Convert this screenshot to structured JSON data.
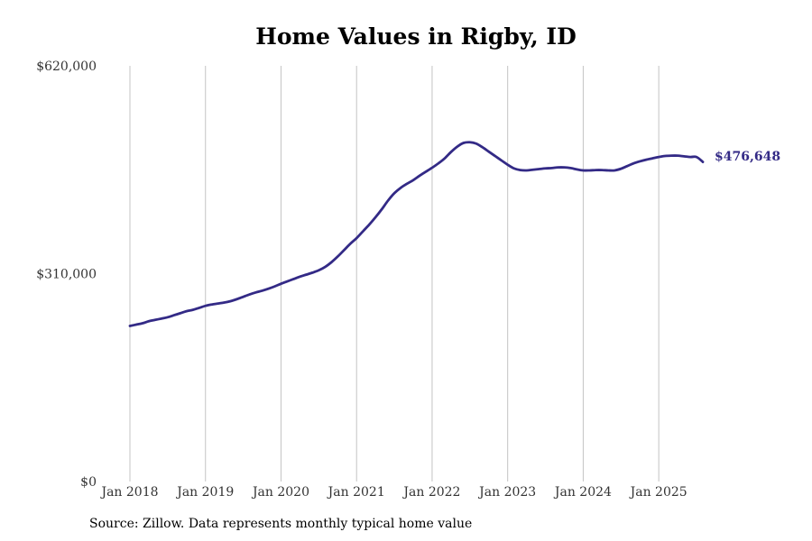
{
  "chart_data": {
    "type": "line",
    "title": "Home Values in Rigby, ID",
    "xlabel": "",
    "ylabel": "",
    "ylim": [
      0,
      620000
    ],
    "y_ticks": [
      "$0",
      "$310,000",
      "$620,000"
    ],
    "y_tick_values": [
      0,
      310000,
      620000
    ],
    "x_ticks": [
      "Jan 2018",
      "Jan 2019",
      "Jan 2020",
      "Jan 2021",
      "Jan 2022",
      "Jan 2023",
      "Jan 2024",
      "Jan 2025"
    ],
    "x_tick_values": [
      "2018-01",
      "2019-01",
      "2020-01",
      "2021-01",
      "2022-01",
      "2023-01",
      "2024-01",
      "2025-01"
    ],
    "grid": "vertical",
    "line_color": "#332a86",
    "last_value_label": "$476,648",
    "series": [
      {
        "dates": [
          "2018-01",
          "2018-02",
          "2018-03",
          "2018-04",
          "2018-05",
          "2018-06",
          "2018-07",
          "2018-08",
          "2018-09",
          "2018-10",
          "2018-11",
          "2018-12",
          "2019-01",
          "2019-02",
          "2019-03",
          "2019-04",
          "2019-05",
          "2019-06",
          "2019-07",
          "2019-08",
          "2019-09",
          "2019-10",
          "2019-11",
          "2019-12",
          "2020-01",
          "2020-02",
          "2020-03",
          "2020-04",
          "2020-05",
          "2020-06",
          "2020-07",
          "2020-08",
          "2020-09",
          "2020-10",
          "2020-11",
          "2020-12",
          "2021-01",
          "2021-02",
          "2021-03",
          "2021-04",
          "2021-05",
          "2021-06",
          "2021-07",
          "2021-08",
          "2021-09",
          "2021-10",
          "2021-11",
          "2021-12",
          "2022-01",
          "2022-02",
          "2022-03",
          "2022-04",
          "2022-05",
          "2022-06",
          "2022-07",
          "2022-08",
          "2022-09",
          "2022-10",
          "2022-11",
          "2022-12",
          "2023-01",
          "2023-02",
          "2023-03",
          "2023-04",
          "2023-05",
          "2023-06",
          "2023-07",
          "2023-08",
          "2023-09",
          "2023-10",
          "2023-11",
          "2023-12",
          "2024-01",
          "2024-02",
          "2024-03",
          "2024-04",
          "2024-05",
          "2024-06",
          "2024-07",
          "2024-08",
          "2024-09",
          "2024-10",
          "2024-11",
          "2024-12",
          "2025-01",
          "2025-02",
          "2025-03",
          "2025-04",
          "2025-05",
          "2025-06",
          "2025-07",
          "2025-08"
        ],
        "values": [
          232000,
          234000,
          236000,
          239000,
          241000,
          243000,
          245000,
          248000,
          251000,
          254000,
          256000,
          259000,
          262000,
          264000,
          265500,
          267000,
          269000,
          272000,
          275500,
          279000,
          282000,
          284500,
          287500,
          291000,
          295000,
          298500,
          302000,
          305500,
          308500,
          311500,
          315000,
          320000,
          327000,
          335500,
          345000,
          354500,
          363000,
          373000,
          383000,
          394000,
          406000,
          419000,
          430000,
          438000,
          444000,
          449500,
          456000,
          462000,
          468000,
          474500,
          482000,
          491500,
          499500,
          505000,
          506000,
          504000,
          498500,
          492000,
          485500,
          479000,
          472500,
          467000,
          464500,
          464000,
          465000,
          466000,
          467000,
          467500,
          468500,
          468500,
          467500,
          465500,
          464000,
          464000,
          464500,
          464500,
          464000,
          464000,
          466500,
          470500,
          474500,
          477500,
          480000,
          482000,
          484000,
          485500,
          486000,
          486000,
          485000,
          484000,
          484000,
          476648
        ]
      }
    ]
  }
}
